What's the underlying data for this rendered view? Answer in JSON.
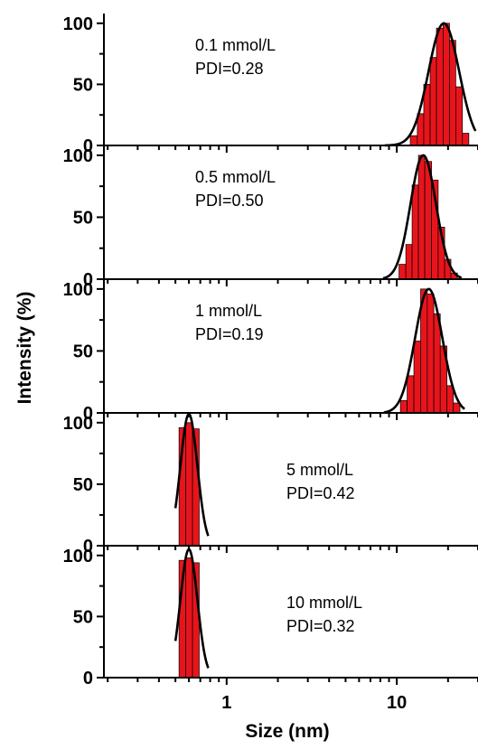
{
  "chart_data": {
    "type": "bar",
    "xlabel": "Size (nm)",
    "ylabel": "Intensity (%)",
    "x_scale": "log",
    "xlim": [
      0.19,
      30
    ],
    "ylim": [
      0,
      105
    ],
    "x_tick_labels": [
      {
        "value": 1,
        "label": "1"
      },
      {
        "value": 10,
        "label": "10"
      }
    ],
    "y_tick_labels": [
      {
        "value": 0,
        "label": "0"
      },
      {
        "value": 50,
        "label": "50"
      },
      {
        "value": 100,
        "label": "100"
      }
    ],
    "bar_color": "#e8141c",
    "fit_color": "#000000",
    "panels": [
      {
        "annotation": [
          "0.1 mmol/L",
          "PDI=0.28"
        ],
        "annotation_pos": "top-left",
        "bins": [
          {
            "lo": 12.0,
            "hi": 13.2,
            "v": 8
          },
          {
            "lo": 13.2,
            "hi": 14.4,
            "v": 26
          },
          {
            "lo": 14.4,
            "hi": 15.7,
            "v": 50
          },
          {
            "lo": 15.7,
            "hi": 17.1,
            "v": 72
          },
          {
            "lo": 17.1,
            "hi": 18.7,
            "v": 96
          },
          {
            "lo": 18.7,
            "hi": 20.4,
            "v": 100
          },
          {
            "lo": 20.4,
            "hi": 22.2,
            "v": 86
          },
          {
            "lo": 22.2,
            "hi": 24.3,
            "v": 48
          },
          {
            "lo": 24.3,
            "hi": 26.5,
            "v": 10
          }
        ],
        "fit": {
          "center": 18.9,
          "sigma_log10": 0.09,
          "peak": 100,
          "from": 8.5,
          "to": 29
        }
      },
      {
        "annotation": [
          "0.5 mmol/L",
          "PDI=0.50"
        ],
        "annotation_pos": "top-left",
        "bins": [
          {
            "lo": 10.3,
            "hi": 11.3,
            "v": 12
          },
          {
            "lo": 11.3,
            "hi": 12.3,
            "v": 28
          },
          {
            "lo": 12.3,
            "hi": 13.4,
            "v": 76
          },
          {
            "lo": 13.4,
            "hi": 14.6,
            "v": 100
          },
          {
            "lo": 14.6,
            "hi": 16.0,
            "v": 95
          },
          {
            "lo": 16.0,
            "hi": 17.5,
            "v": 80
          },
          {
            "lo": 17.5,
            "hi": 19.1,
            "v": 42
          },
          {
            "lo": 19.1,
            "hi": 20.8,
            "v": 16
          },
          {
            "lo": 20.8,
            "hi": 22.7,
            "v": 5
          }
        ],
        "fit": {
          "center": 14.3,
          "sigma_log10": 0.075,
          "peak": 100,
          "from": 8.3,
          "to": 24
        }
      },
      {
        "annotation": [
          "1 mmol/L",
          "PDI=0.19"
        ],
        "annotation_pos": "top-left",
        "bins": [
          {
            "lo": 10.5,
            "hi": 11.5,
            "v": 10
          },
          {
            "lo": 11.5,
            "hi": 12.6,
            "v": 30
          },
          {
            "lo": 12.6,
            "hi": 13.8,
            "v": 58
          },
          {
            "lo": 13.8,
            "hi": 15.1,
            "v": 100
          },
          {
            "lo": 15.1,
            "hi": 16.5,
            "v": 96
          },
          {
            "lo": 16.5,
            "hi": 18.0,
            "v": 80
          },
          {
            "lo": 18.0,
            "hi": 19.7,
            "v": 54
          },
          {
            "lo": 19.7,
            "hi": 21.5,
            "v": 22
          },
          {
            "lo": 21.5,
            "hi": 23.5,
            "v": 8
          }
        ],
        "fit": {
          "center": 15.4,
          "sigma_log10": 0.08,
          "peak": 100,
          "from": 8.4,
          "to": 25
        }
      },
      {
        "annotation": [
          "5 mmol/L",
          "PDI=0.42"
        ],
        "annotation_pos": "middle-right",
        "bins": [
          {
            "lo": 0.525,
            "hi": 0.575,
            "v": 96
          },
          {
            "lo": 0.575,
            "hi": 0.63,
            "v": 100
          },
          {
            "lo": 0.63,
            "hi": 0.69,
            "v": 95
          }
        ],
        "fit": {
          "center": 0.6,
          "sigma_log10": 0.05,
          "peak": 107,
          "from": 0.5,
          "to": 0.78
        }
      },
      {
        "annotation": [
          "10 mmol/L",
          "PDI=0.32"
        ],
        "annotation_pos": "middle-right",
        "bins": [
          {
            "lo": 0.525,
            "hi": 0.575,
            "v": 96
          },
          {
            "lo": 0.575,
            "hi": 0.63,
            "v": 98
          },
          {
            "lo": 0.63,
            "hi": 0.69,
            "v": 94
          }
        ],
        "fit": {
          "center": 0.6,
          "sigma_log10": 0.05,
          "peak": 105,
          "from": 0.5,
          "to": 0.78
        }
      }
    ]
  }
}
